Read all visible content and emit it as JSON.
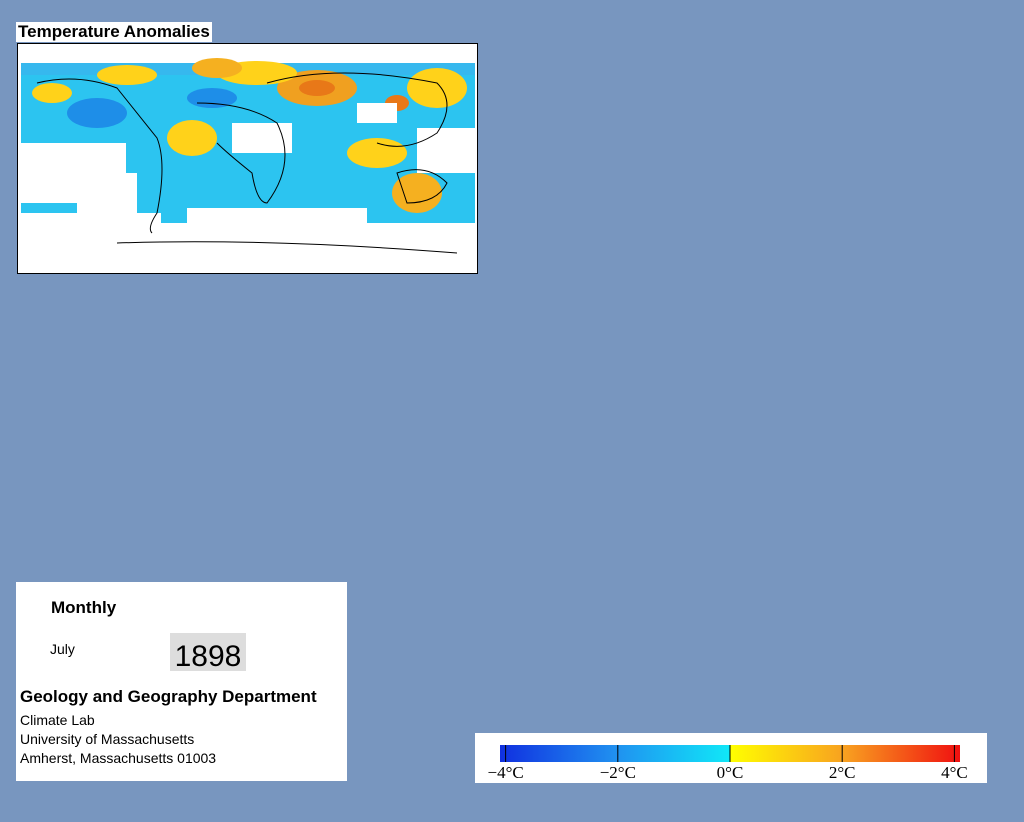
{
  "title": "Temperature Anomalies",
  "panel": {
    "period": "Monthly",
    "month": "July",
    "year": "1898",
    "department": "Geology and Geography Department",
    "lines": [
      "Climate Lab",
      "University of Massachusetts",
      "Amherst, Massachusetts 01003"
    ]
  },
  "colorbar": {
    "lim": [
      -4.1,
      4.1
    ],
    "ticks": [
      {
        "value": -4,
        "label": "−4°C"
      },
      {
        "value": -2,
        "label": "−2°C"
      },
      {
        "value": 0,
        "label": "0°C"
      },
      {
        "value": 2,
        "label": "2°C"
      },
      {
        "value": 4,
        "label": "4°C"
      }
    ]
  }
}
